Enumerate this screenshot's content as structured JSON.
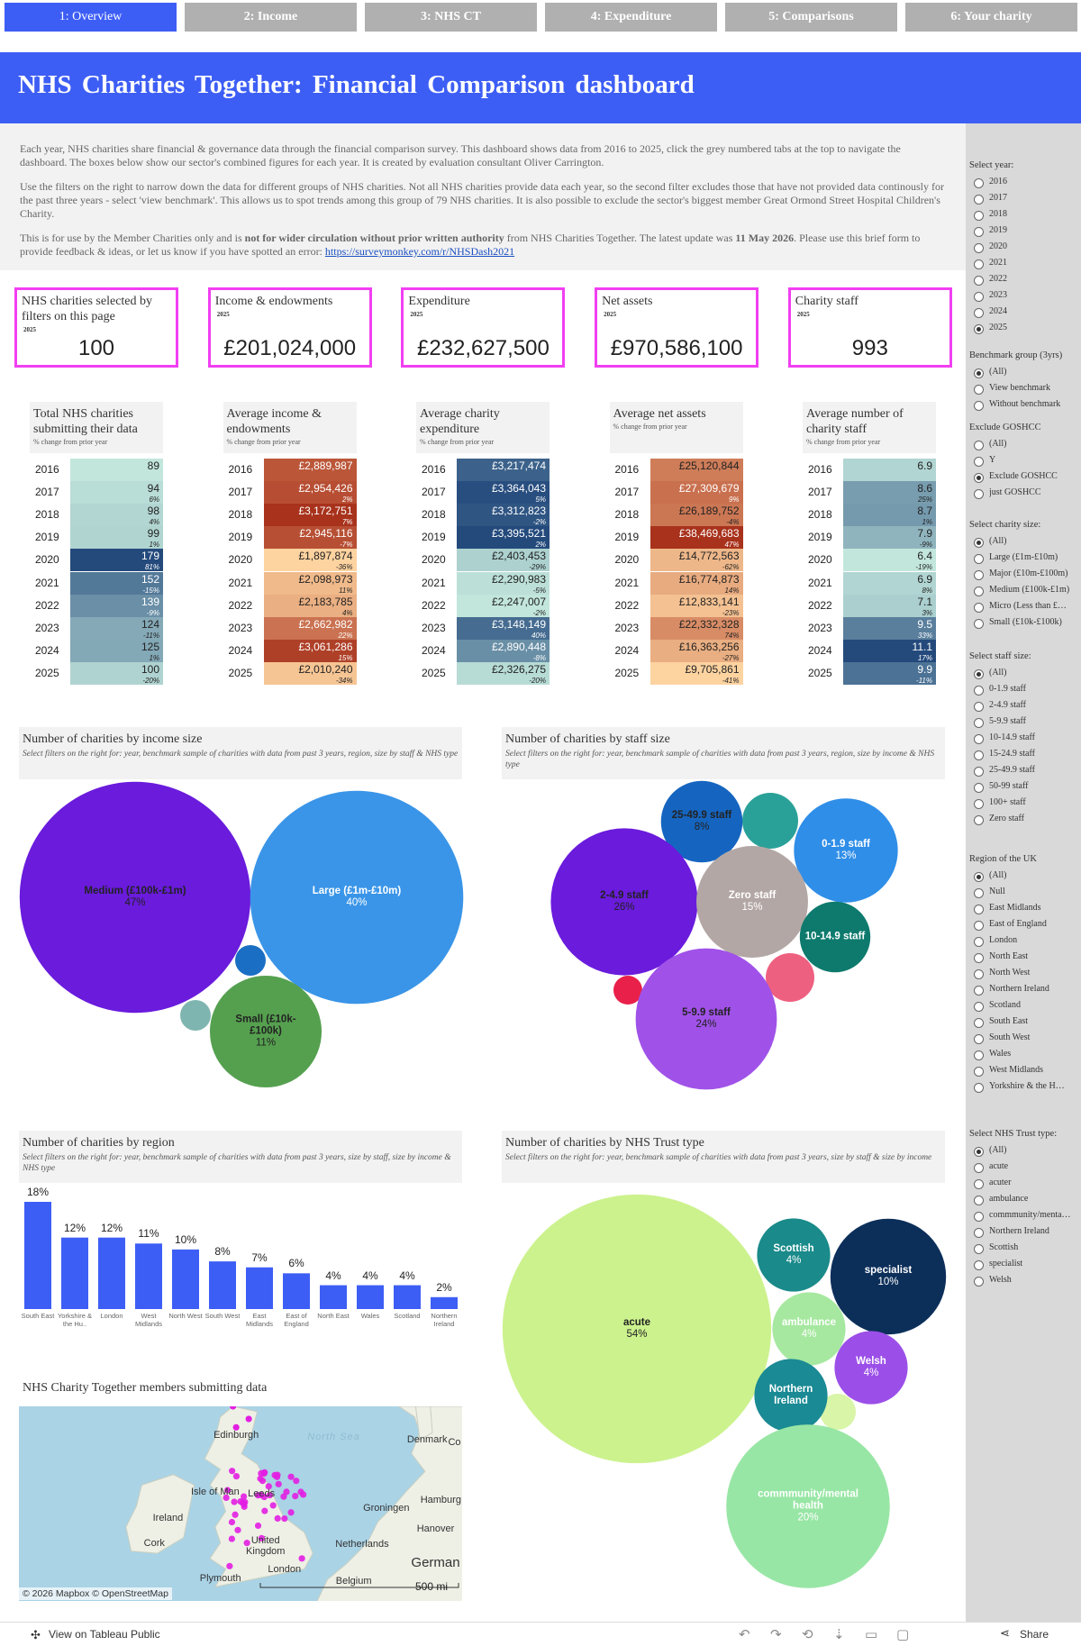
{
  "tabs": {
    "labels": [
      "1: Overview",
      "2: Income",
      "3: NHS CT",
      "4: Expenditure",
      "5: Comparisons",
      "6: Your charity"
    ],
    "active": 0
  },
  "header": {
    "title": "NHS Charities Together: Financial Comparison dashboard"
  },
  "intro": {
    "p1": "Each year, NHS charities share financial & governance data through the financial comparison survey. This dashboard shows data from 2016 to 2025, click the grey numbered tabs at the top to navigate the dashboard. The boxes below show our sector's combined figures for each year. It is created by evaluation consultant Oliver Carrington.",
    "p2": "Use the filters on the right to narrow down the data for different groups of NHS charities. Not all NHS charities provide data each year, so the second filter excludes those that have not provided data continously for the past three years - select 'view benchmark'. This allows us to spot trends among this group of 79 NHS charities. It is also possible to exclude the sector's biggest member Great Ormond Street Hospital Children's Charity.",
    "p3_start": "This is for use by the Member Charities only and is ",
    "p3_bold": "not for wider circulation without prior written authority",
    "p3_middle": " from NHS Charities Together. The latest update was ",
    "p3_date": "11 May 2026",
    "p3_end": ". Please use this brief form to provide feedback & ideas, or let us know if you have spotted an error: ",
    "p3_link": "https://surveymonkey.com/r/NHSDash2021"
  },
  "kpis": [
    {
      "label": "NHS charities selected by filters on this page",
      "year": "2025",
      "value": "100"
    },
    {
      "label": "Income & endowments",
      "year": "2025",
      "value": "£201,024,000"
    },
    {
      "label": "Expenditure",
      "year": "2025",
      "value": "£232,627,500"
    },
    {
      "label": "Net assets",
      "year": "2025",
      "value": "£970,586,100"
    },
    {
      "label": "Charity staff",
      "year": "2025",
      "value": "993"
    }
  ],
  "tables": [
    {
      "title": "Total NHS charities submitting their data",
      "subtitle": "% change from prior year",
      "colors": [
        "#c2e6dc",
        "#244a7c"
      ],
      "rows": [
        {
          "year": "2016",
          "value": 89
        },
        {
          "year": "2017",
          "value": 94,
          "change": "6%"
        },
        {
          "year": "2018",
          "value": 98,
          "change": "4%"
        },
        {
          "year": "2019",
          "value": 99,
          "change": "1%"
        },
        {
          "year": "2020",
          "value": 179,
          "change": "81%"
        },
        {
          "year": "2021",
          "value": 152,
          "change": "-15%"
        },
        {
          "year": "2022",
          "value": 139,
          "change": "-9%"
        },
        {
          "year": "2023",
          "value": 124,
          "change": "-11%"
        },
        {
          "year": "2024",
          "value": 125,
          "change": "1%"
        },
        {
          "year": "2025",
          "value": 100,
          "change": "-20%"
        }
      ]
    },
    {
      "title": "Average income & endowments",
      "subtitle": "% change from prior year",
      "colors": [
        "#fdd3a0",
        "#a8321c"
      ],
      "rows": [
        {
          "year": "2016",
          "value": "£2,889,987"
        },
        {
          "year": "2017",
          "value": "£2,954,426",
          "change": "2%"
        },
        {
          "year": "2018",
          "value": "£3,172,751",
          "change": "7%"
        },
        {
          "year": "2019",
          "value": "£2,945,116",
          "change": "-7%"
        },
        {
          "year": "2020",
          "value": "£1,897,874",
          "change": "-36%"
        },
        {
          "year": "2021",
          "value": "£2,098,973",
          "change": "11%"
        },
        {
          "year": "2022",
          "value": "£2,183,785",
          "change": "4%"
        },
        {
          "year": "2023",
          "value": "£2,662,982",
          "change": "22%"
        },
        {
          "year": "2024",
          "value": "£3,061,286",
          "change": "15%"
        },
        {
          "year": "2025",
          "value": "£2,010,240",
          "change": "-34%"
        }
      ]
    },
    {
      "title": "Average charity expenditure",
      "subtitle": "% change from prior year",
      "colors": [
        "#c2e6dc",
        "#244a7c"
      ],
      "rows": [
        {
          "year": "2016",
          "value": "£3,217,474"
        },
        {
          "year": "2017",
          "value": "£3,364,043",
          "change": "5%"
        },
        {
          "year": "2018",
          "value": "£3,312,823",
          "change": "-2%"
        },
        {
          "year": "2019",
          "value": "£3,395,521",
          "change": "2%"
        },
        {
          "year": "2020",
          "value": "£2,403,453",
          "change": "-29%"
        },
        {
          "year": "2021",
          "value": "£2,290,983",
          "change": "-5%"
        },
        {
          "year": "2022",
          "value": "£2,247,007",
          "change": "-2%"
        },
        {
          "year": "2023",
          "value": "£3,148,149",
          "change": "40%"
        },
        {
          "year": "2024",
          "value": "£2,890,448",
          "change": "-8%"
        },
        {
          "year": "2025",
          "value": "£2,326,275",
          "change": "-20%"
        }
      ]
    },
    {
      "title": "Average net assets",
      "subtitle": "% change from prior year",
      "colors": [
        "#fdd3a0",
        "#a8321c"
      ],
      "rows": [
        {
          "year": "2016",
          "value": "£25,120,844"
        },
        {
          "year": "2017",
          "value": "£27,309,679",
          "change": "9%"
        },
        {
          "year": "2018",
          "value": "£26,189,752",
          "change": "-4%"
        },
        {
          "year": "2019",
          "value": "£38,469,683",
          "change": "47%"
        },
        {
          "year": "2020",
          "value": "£14,772,563",
          "change": "-62%"
        },
        {
          "year": "2021",
          "value": "£16,774,873",
          "change": "14%"
        },
        {
          "year": "2022",
          "value": "£12,833,141",
          "change": "-23%"
        },
        {
          "year": "2023",
          "value": "£22,332,328",
          "change": "74%"
        },
        {
          "year": "2024",
          "value": "£16,363,256",
          "change": "-27%"
        },
        {
          "year": "2025",
          "value": "£9,705,861",
          "change": "-41%"
        }
      ]
    },
    {
      "title": "Average number of charity staff",
      "subtitle": "% change from prior year",
      "colors": [
        "#c2e6dc",
        "#244a7c"
      ],
      "rows": [
        {
          "year": "2016",
          "value": 6.9
        },
        {
          "year": "2017",
          "value": 8.6,
          "change": "25%"
        },
        {
          "year": "2018",
          "value": 8.7,
          "change": "1%"
        },
        {
          "year": "2019",
          "value": 7.9,
          "change": "-9%"
        },
        {
          "year": "2020",
          "value": 6.4,
          "change": "-19%"
        },
        {
          "year": "2021",
          "value": 6.9,
          "change": "8%"
        },
        {
          "year": "2022",
          "value": 7.1,
          "change": "3%"
        },
        {
          "year": "2023",
          "value": 9.5,
          "change": "33%"
        },
        {
          "year": "2024",
          "value": 11.1,
          "change": "17%"
        },
        {
          "year": "2025",
          "value": 9.9,
          "change": "-11%"
        }
      ]
    }
  ],
  "income_chart": {
    "type": "bubble",
    "title": "Number of charities by income size",
    "subtitle": "Select filters on the right for: year, benchmark sample of charities with data from past 3 years, region, size by staff & NHS type",
    "categories": [
      "Medium (£100k-£1m)",
      "Large (£1m-£10m)",
      "Small (£10k-£100k)"
    ],
    "values": [
      47,
      40,
      11
    ],
    "value_labels": [
      "47%",
      "40%",
      "11%"
    ],
    "colors": [
      "#6a1bdc",
      "#3a95e8",
      "#55a04f"
    ]
  },
  "staff_chart": {
    "type": "bubble",
    "title": "Number of charities by staff size",
    "subtitle": "Select filters on the right for: year, benchmark sample of charities with data from past 3 years, region, size by income & NHS type",
    "categories": [
      "25-49.9 staff",
      "0-1.9 staff",
      "2-4.9 staff",
      "Zero staff",
      "10-14.9 staff",
      "5-9.9 staff"
    ],
    "values": [
      8,
      13,
      26,
      15,
      6,
      24
    ],
    "value_labels": [
      "8%",
      "13%",
      "26%",
      "15%",
      null,
      "24%"
    ],
    "colors": [
      "#1565c0",
      "#2f8ee8",
      "#6a1bdc",
      "#b3a7a5",
      "#0d7a6d",
      "#a052e8"
    ]
  },
  "region_chart": {
    "type": "bar",
    "title": "Number of charities by region",
    "subtitle": "Select filters on the right for: year, benchmark sample of charities with data from past 3 years, size by staff, size by income & NHS type",
    "categories": [
      "South East",
      "Yorkshire & the Hu..",
      "London",
      "West Midlands",
      "North West",
      "South West",
      "East Midlands",
      "East of England",
      "North East",
      "Wales",
      "Scotland",
      "Northern Ireland"
    ],
    "values": [
      18,
      12,
      12,
      11,
      10,
      8,
      7,
      6,
      4,
      4,
      4,
      2
    ],
    "value_labels": [
      "18%",
      "12%",
      "12%",
      "11%",
      "10%",
      "8%",
      "7%",
      "6%",
      "4%",
      "4%",
      "4%",
      "2%"
    ],
    "color": "#3d5ef5"
  },
  "trust_chart": {
    "type": "bubble",
    "title": "Number of charities by NHS Trust type",
    "subtitle": "Select filters on the right for: year, benchmark sample of charities with data from past 3 years, size by staff & size by income",
    "categories": [
      "acute",
      "Scottish",
      "specialist",
      "ambulance",
      "Welsh",
      "Northern Ireland",
      "commmunity/mental health"
    ],
    "values": [
      54,
      4,
      10,
      4,
      4,
      4,
      20
    ],
    "value_labels": [
      "54%",
      "4%",
      "10%",
      "4%",
      "4%",
      null,
      "20%"
    ],
    "colors": [
      "#ccf28e",
      "#1a8a8a",
      "#0c2f5a",
      "#a6e8a0",
      "#9b4fe8",
      "#1a8a94",
      "#98e6a5"
    ]
  },
  "map": {
    "title": "NHS Charity Together members submitting data",
    "places": [
      "Edinburgh",
      "North Sea",
      "Denmark",
      "Co",
      "Isle of Man",
      "Leeds",
      "Ireland",
      "Cork",
      "United Kingdom",
      "London",
      "Plymouth",
      "Groningen",
      "Hamburg",
      "Netherlands",
      "Hanover",
      "German",
      "Belgium"
    ],
    "scale": "500 mi",
    "credit": "© 2026 Mapbox © OpenStreetMap"
  },
  "filters": [
    {
      "title": "Select year:",
      "options": [
        "2016",
        "2017",
        "2018",
        "2019",
        "2020",
        "2021",
        "2022",
        "2023",
        "2024",
        "2025"
      ],
      "selected": 9
    },
    {
      "title": "Benchmark group (3yrs)",
      "options": [
        "(All)",
        "View benchmark",
        "Without benchmark"
      ],
      "selected": 0
    },
    {
      "title": "Exclude GOSHCC",
      "options": [
        "(All)",
        "Y",
        "Exclude GOSHCC",
        "just GOSHCC"
      ],
      "selected": 2
    },
    {
      "title": "Select charity size:",
      "options": [
        "(All)",
        "Large (£1m-£10m)",
        "Major (£10m-£100m)",
        "Medium (£100k-£1m)",
        "Micro (Less than £…",
        "Small (£10k-£100k)"
      ],
      "selected": 0
    },
    {
      "title": "Select staff size:",
      "options": [
        "(All)",
        "0-1.9 staff",
        "2-4.9 staff",
        "5-9.9 staff",
        "10-14.9 staff",
        "15-24.9 staff",
        "25-49.9 staff",
        "50-99 staff",
        "100+ staff",
        "Zero staff"
      ],
      "selected": 0
    },
    {
      "title": "Region of the UK",
      "options": [
        "(All)",
        "Null",
        "East Midlands",
        "East of England",
        "London",
        "North East",
        "North West",
        "Northern Ireland",
        "Scotland",
        "South East",
        "South West",
        "Wales",
        "West Midlands",
        "Yorkshire & the H…"
      ],
      "selected": 0
    },
    {
      "title": "Select NHS Trust type:",
      "options": [
        "(All)",
        "acute",
        "acuter",
        "ambulance",
        "commmunity/menta…",
        "Northern Ireland",
        "Scottish",
        "specialist",
        "Welsh"
      ],
      "selected": 0
    }
  ],
  "footer": {
    "view": "View on Tableau Public",
    "share": "Share"
  }
}
